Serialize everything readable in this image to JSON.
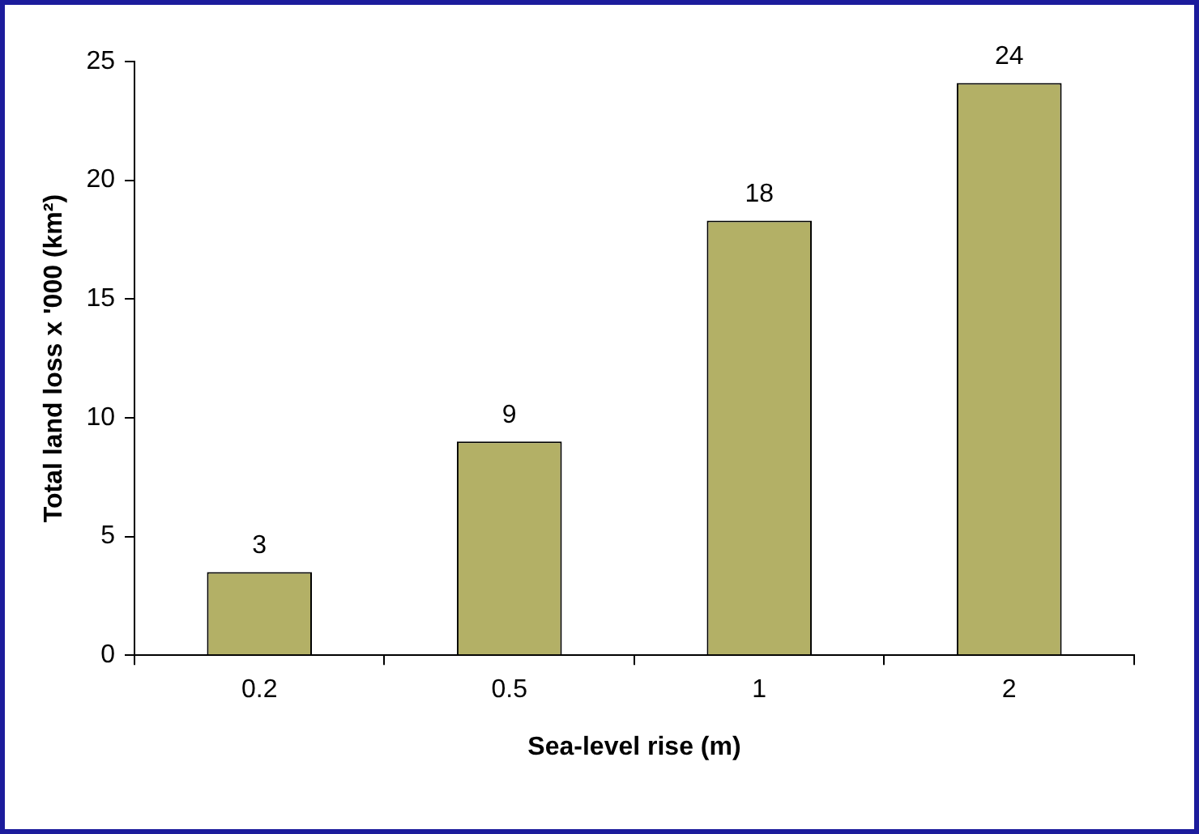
{
  "chart_data": {
    "type": "bar",
    "xlabel": "Sea-level rise (m)",
    "ylabel": "Total land loss x '000 (km²)",
    "categories": [
      "0.2",
      "0.5",
      "1",
      "2"
    ],
    "values": [
      3.5,
      9,
      18.3,
      24.1
    ],
    "value_labels": [
      "3",
      "9",
      "18",
      "24"
    ],
    "color": "#b3b066",
    "ylim": [
      0,
      25
    ],
    "yticks": [
      0,
      5,
      10,
      15,
      20,
      25
    ],
    "grid": false,
    "legend": false
  }
}
